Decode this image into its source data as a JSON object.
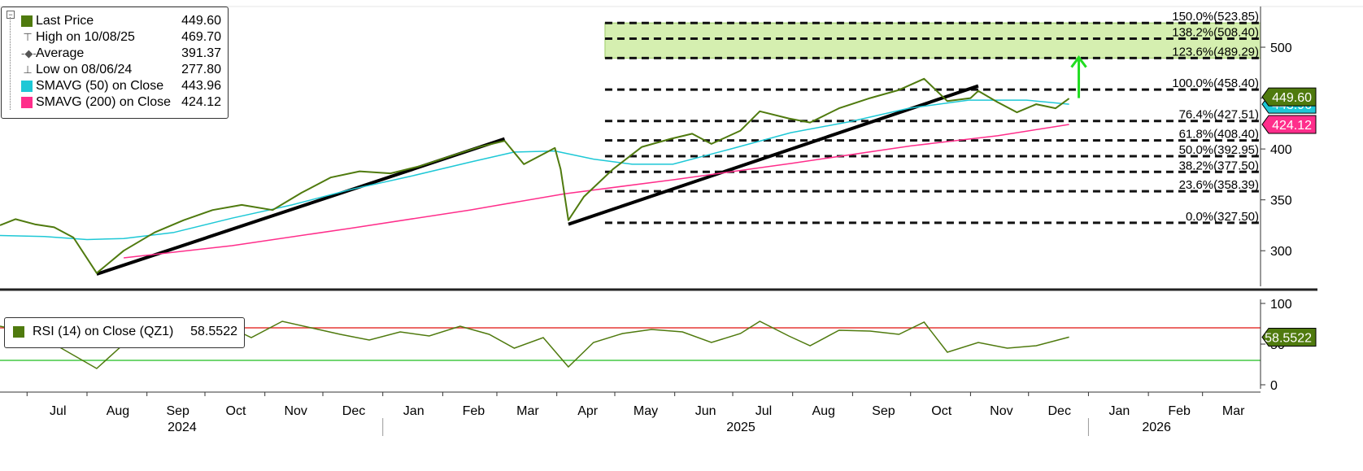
{
  "legend": {
    "items": [
      {
        "label": "Last Price",
        "value": "449.60",
        "color": "#4f7a0e",
        "icon": "square"
      },
      {
        "label": "High on 10/08/25",
        "value": "469.70",
        "icon": "high-marker-icon"
      },
      {
        "label": "Average",
        "value": "391.37",
        "icon": "average-line-icon"
      },
      {
        "label": "Low on 08/06/24",
        "value": "277.80",
        "icon": "low-marker-icon"
      },
      {
        "label": "SMAVG (50)  on Close",
        "value": "443.96",
        "color": "#1ec8d6",
        "icon": "square"
      },
      {
        "label": "SMAVG (200)  on Close",
        "value": "424.12",
        "color": "#ff2e8b",
        "icon": "square"
      }
    ]
  },
  "rsi_legend": {
    "label": "RSI (14)  on Close (QZ1)",
    "value": "58.5522",
    "color": "#4f7a0e"
  },
  "chart_data": [
    {
      "type": "line",
      "panel": "price",
      "y_ticks": [
        300,
        350,
        400,
        450,
        500
      ],
      "ylim": [
        265,
        540
      ],
      "x_range": [
        "2024-06-17",
        "2026-03-31"
      ],
      "last_value_tag": {
        "value": "449.60",
        "color": "#4f7a0e"
      },
      "sma_tags": [
        {
          "value": "443.96",
          "color": "#1ec8d6"
        },
        {
          "value": "424.12",
          "color": "#ff2e8b"
        }
      ],
      "series": [
        {
          "name": "Last Price",
          "color": "#4f7a0e",
          "points": [
            [
              "2024-06-17",
              325
            ],
            [
              "2024-06-25",
              331
            ],
            [
              "2024-07-05",
              326
            ],
            [
              "2024-07-15",
              323
            ],
            [
              "2024-07-25",
              313
            ],
            [
              "2024-08-06",
              278
            ],
            [
              "2024-08-20",
              300
            ],
            [
              "2024-09-05",
              318
            ],
            [
              "2024-09-20",
              330
            ],
            [
              "2024-10-05",
              340
            ],
            [
              "2024-10-20",
              345
            ],
            [
              "2024-11-05",
              340
            ],
            [
              "2024-11-20",
              357
            ],
            [
              "2024-12-05",
              372
            ],
            [
              "2024-12-20",
              378
            ],
            [
              "2025-01-05",
              376
            ],
            [
              "2025-01-20",
              383
            ],
            [
              "2025-02-05",
              393
            ],
            [
              "2025-02-20",
              402
            ],
            [
              "2025-03-05",
              408
            ],
            [
              "2025-03-15",
              385
            ],
            [
              "2025-03-31",
              401
            ],
            [
              "2025-04-03",
              380
            ],
            [
              "2025-04-07",
              330
            ],
            [
              "2025-04-15",
              353
            ],
            [
              "2025-04-30",
              380
            ],
            [
              "2025-05-15",
              402
            ],
            [
              "2025-05-30",
              410
            ],
            [
              "2025-06-10",
              415
            ],
            [
              "2025-06-20",
              405
            ],
            [
              "2025-07-05",
              418
            ],
            [
              "2025-07-15",
              437
            ],
            [
              "2025-07-30",
              430
            ],
            [
              "2025-08-10",
              426
            ],
            [
              "2025-08-25",
              440
            ],
            [
              "2025-09-10",
              450
            ],
            [
              "2025-09-25",
              458
            ],
            [
              "2025-10-08",
              469
            ],
            [
              "2025-10-20",
              447
            ],
            [
              "2025-11-01",
              450
            ],
            [
              "2025-11-05",
              457
            ],
            [
              "2025-11-15",
              446
            ],
            [
              "2025-11-25",
              436
            ],
            [
              "2025-12-05",
              444
            ],
            [
              "2025-12-15",
              440
            ],
            [
              "2025-12-22",
              449.6
            ]
          ]
        },
        {
          "name": "SMAVG (50)  on Close",
          "color": "#1ec8d6",
          "points": [
            [
              "2024-06-17",
              315
            ],
            [
              "2024-07-10",
              314
            ],
            [
              "2024-08-01",
              311
            ],
            [
              "2024-08-20",
              312
            ],
            [
              "2024-09-15",
              318
            ],
            [
              "2024-10-15",
              332
            ],
            [
              "2024-11-15",
              345
            ],
            [
              "2024-12-15",
              360
            ],
            [
              "2025-01-15",
              373
            ],
            [
              "2025-02-15",
              387
            ],
            [
              "2025-03-10",
              397
            ],
            [
              "2025-03-31",
              398
            ],
            [
              "2025-04-20",
              390
            ],
            [
              "2025-05-10",
              385
            ],
            [
              "2025-05-31",
              385
            ],
            [
              "2025-06-30",
              400
            ],
            [
              "2025-07-31",
              416
            ],
            [
              "2025-08-31",
              427
            ],
            [
              "2025-09-30",
              440
            ],
            [
              "2025-10-31",
              448
            ],
            [
              "2025-11-30",
              448
            ],
            [
              "2025-12-22",
              443.96
            ]
          ]
        },
        {
          "name": "SMAVG (200)  on Close",
          "color": "#ff2e8b",
          "points": [
            [
              "2024-08-20",
              293
            ],
            [
              "2024-10-15",
              305
            ],
            [
              "2024-12-15",
              322
            ],
            [
              "2025-02-15",
              340
            ],
            [
              "2025-04-05",
              356
            ],
            [
              "2025-06-01",
              370
            ],
            [
              "2025-08-01",
              386
            ],
            [
              "2025-10-01",
              403
            ],
            [
              "2025-11-15",
              413
            ],
            [
              "2025-12-22",
              424.12
            ]
          ]
        }
      ],
      "trendlines": [
        {
          "from": [
            "2024-08-06",
            277
          ],
          "to": [
            "2025-03-05",
            410
          ]
        },
        {
          "from": [
            "2025-04-07",
            326
          ],
          "to": [
            "2025-11-05",
            462
          ]
        }
      ],
      "fibonacci": {
        "from_date": "2025-04-07",
        "to_date": "2026-03-31",
        "band": [
          "123.6%",
          "150.0%"
        ],
        "band_color": "#d5efb0",
        "levels": [
          {
            "label": "0.0%(327.50)",
            "value": 327.5
          },
          {
            "label": "23.6%(358.39)",
            "value": 358.39
          },
          {
            "label": "38.2%(377.50)",
            "value": 377.5
          },
          {
            "label": "50.0%(392.95)",
            "value": 392.95
          },
          {
            "label": "61.8%(408.40)",
            "value": 408.4
          },
          {
            "label": "76.4%(427.51)",
            "value": 427.51
          },
          {
            "label": "100.0%(458.40)",
            "value": 458.4
          },
          {
            "label": "123.6%(489.29)",
            "value": 489.29
          },
          {
            "label": "138.2%(508.40)",
            "value": 508.4
          },
          {
            "label": "150.0%(523.85)",
            "value": 523.85
          }
        ]
      },
      "arrow": {
        "date": "2025-12-27",
        "from": 450,
        "to": 490,
        "color": "#22dd22"
      }
    },
    {
      "type": "line",
      "panel": "rsi",
      "y_ticks": [
        0,
        50,
        100
      ],
      "ylim": [
        -5,
        105
      ],
      "overbought": 70,
      "oversold": 30,
      "value_tag": {
        "value": "58.5522",
        "color": "#4f7a0e"
      },
      "series": [
        {
          "name": "RSI (14)  on Close (QZ1)",
          "color": "#4f7a0e",
          "points": [
            [
              "2024-06-17",
              72
            ],
            [
              "2024-07-01",
              65
            ],
            [
              "2024-07-15",
              50
            ],
            [
              "2024-08-06",
              20
            ],
            [
              "2024-08-20",
              50
            ],
            [
              "2024-09-05",
              65
            ],
            [
              "2024-09-25",
              68
            ],
            [
              "2024-10-10",
              75
            ],
            [
              "2024-10-25",
              58
            ],
            [
              "2024-11-10",
              78
            ],
            [
              "2024-11-25",
              70
            ],
            [
              "2024-12-10",
              62
            ],
            [
              "2024-12-25",
              55
            ],
            [
              "2025-01-10",
              65
            ],
            [
              "2025-01-25",
              60
            ],
            [
              "2025-02-10",
              72
            ],
            [
              "2025-02-25",
              62
            ],
            [
              "2025-03-10",
              45
            ],
            [
              "2025-03-25",
              58
            ],
            [
              "2025-04-07",
              22
            ],
            [
              "2025-04-20",
              52
            ],
            [
              "2025-05-05",
              63
            ],
            [
              "2025-05-20",
              68
            ],
            [
              "2025-06-05",
              65
            ],
            [
              "2025-06-20",
              52
            ],
            [
              "2025-07-05",
              63
            ],
            [
              "2025-07-15",
              78
            ],
            [
              "2025-07-30",
              60
            ],
            [
              "2025-08-10",
              48
            ],
            [
              "2025-08-25",
              67
            ],
            [
              "2025-09-10",
              66
            ],
            [
              "2025-09-25",
              62
            ],
            [
              "2025-10-08",
              77
            ],
            [
              "2025-10-20",
              40
            ],
            [
              "2025-11-05",
              52
            ],
            [
              "2025-11-20",
              45
            ],
            [
              "2025-12-05",
              48
            ],
            [
              "2025-12-22",
              58.55
            ]
          ]
        }
      ]
    }
  ],
  "x_axis": {
    "months": [
      {
        "label": "Jul",
        "date": "2024-07-01"
      },
      {
        "label": "Aug",
        "date": "2024-08-01"
      },
      {
        "label": "Sep",
        "date": "2024-09-01"
      },
      {
        "label": "Oct",
        "date": "2024-10-01"
      },
      {
        "label": "Nov",
        "date": "2024-11-01"
      },
      {
        "label": "Dec",
        "date": "2024-12-01"
      },
      {
        "label": "Jan",
        "date": "2025-01-01"
      },
      {
        "label": "Feb",
        "date": "2025-02-01"
      },
      {
        "label": "Mar",
        "date": "2025-03-01"
      },
      {
        "label": "Apr",
        "date": "2025-04-01"
      },
      {
        "label": "May",
        "date": "2025-05-01"
      },
      {
        "label": "Jun",
        "date": "2025-06-01"
      },
      {
        "label": "Jul",
        "date": "2025-07-01"
      },
      {
        "label": "Aug",
        "date": "2025-08-01"
      },
      {
        "label": "Sep",
        "date": "2025-09-01"
      },
      {
        "label": "Oct",
        "date": "2025-10-01"
      },
      {
        "label": "Nov",
        "date": "2025-11-01"
      },
      {
        "label": "Dec",
        "date": "2025-12-01"
      },
      {
        "label": "Jan",
        "date": "2026-01-01"
      },
      {
        "label": "Feb",
        "date": "2026-02-01"
      },
      {
        "label": "Mar",
        "date": "2026-03-01"
      }
    ],
    "years": [
      {
        "label": "2024",
        "date": "2024-09-15"
      },
      {
        "label": "2025",
        "date": "2025-07-01"
      },
      {
        "label": "2026",
        "date": "2026-02-01"
      }
    ],
    "year_separators": [
      "2025-01-01",
      "2026-01-01"
    ]
  }
}
